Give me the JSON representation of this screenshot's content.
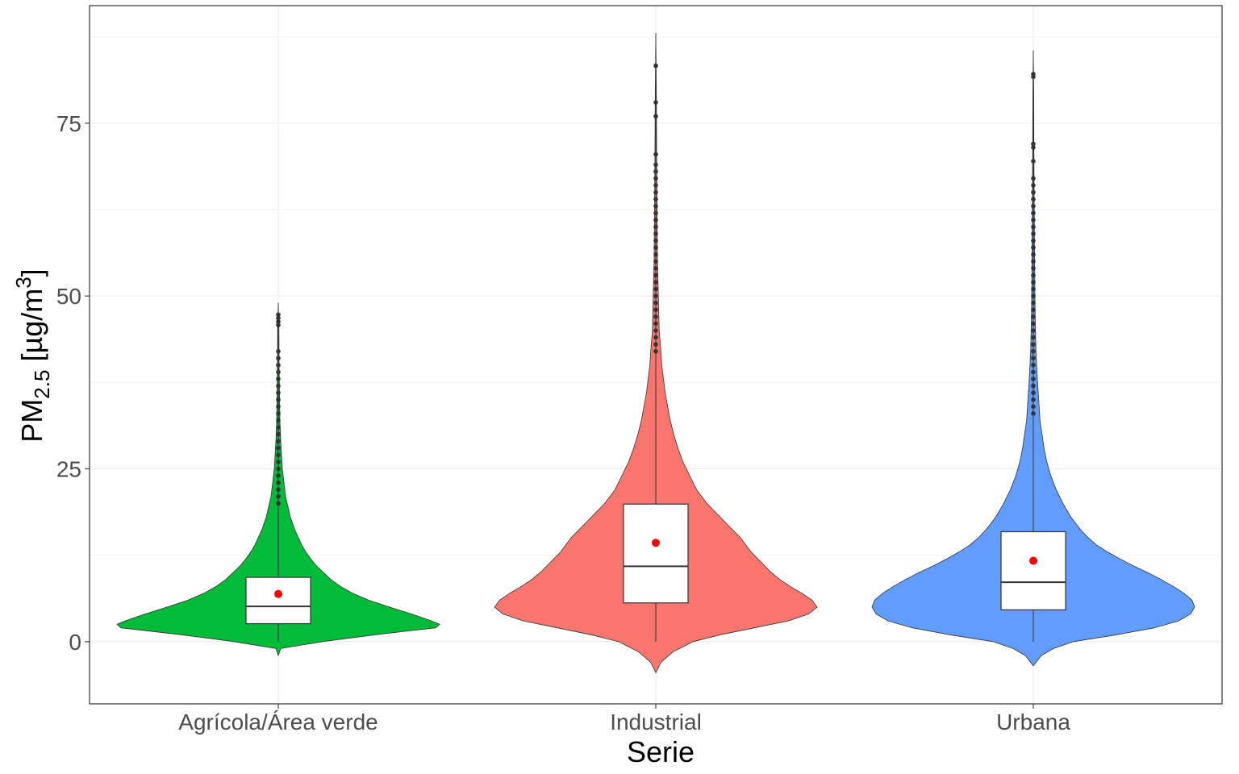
{
  "chart_data": {
    "type": "violin",
    "xlabel": "Serie",
    "ylabel": {
      "prefix": "PM",
      "subscript": "2.5",
      "unit_open": " [µg/m",
      "superscript": "3",
      "unit_close": "]"
    },
    "ylim": [
      -9,
      92
    ],
    "y_ticks": [
      0,
      25,
      50,
      75
    ],
    "y_tick_labels": [
      "0",
      "25",
      "50",
      "75"
    ],
    "grid": true,
    "legend": "none",
    "categories": [
      "Agrícola/Área verde",
      "Industrial",
      "Urbana"
    ],
    "series": [
      {
        "color": "#00BA38",
        "box": {
          "lower_whisker": 0,
          "q1": 2.6,
          "median": 5.1,
          "q3": 9.3,
          "upper_whisker": 19.6
        },
        "mean": 6.9,
        "outliers": [
          20,
          21,
          22,
          23,
          24,
          25,
          26,
          27,
          28,
          29,
          30,
          31,
          32,
          33,
          34,
          35,
          36,
          37,
          38,
          39,
          40,
          41,
          42,
          45.8,
          46.3,
          46.8,
          47.3
        ],
        "density": [
          [
            -2,
            0
          ],
          [
            -1,
            3
          ],
          [
            0,
            55
          ],
          [
            1,
            120
          ],
          [
            2,
            195
          ],
          [
            2.5,
            200
          ],
          [
            3,
            190
          ],
          [
            4,
            165
          ],
          [
            5,
            138
          ],
          [
            6,
            112
          ],
          [
            7,
            92
          ],
          [
            8,
            77
          ],
          [
            9,
            65
          ],
          [
            10,
            56
          ],
          [
            11,
            47
          ],
          [
            12,
            40
          ],
          [
            13,
            34
          ],
          [
            14,
            29
          ],
          [
            15,
            25
          ],
          [
            16,
            21
          ],
          [
            17,
            18
          ],
          [
            18,
            15
          ],
          [
            19,
            13
          ],
          [
            20,
            11
          ],
          [
            21,
            9
          ],
          [
            22,
            8
          ],
          [
            23,
            7
          ],
          [
            24,
            6
          ],
          [
            25,
            5
          ],
          [
            27,
            4
          ],
          [
            29,
            3
          ],
          [
            32,
            2
          ],
          [
            36,
            1.5
          ],
          [
            40,
            1
          ],
          [
            45,
            0.8
          ],
          [
            49,
            0
          ]
        ]
      },
      {
        "color": "#F8766D",
        "box": {
          "lower_whisker": 0,
          "q1": 5.6,
          "median": 10.9,
          "q3": 19.9,
          "upper_whisker": 41.5
        },
        "mean": 14.3,
        "outliers": [
          42,
          43,
          44,
          45,
          46,
          47,
          48,
          49,
          50,
          51,
          52,
          53,
          54,
          55,
          56,
          57,
          58,
          59,
          60,
          61,
          62,
          63,
          64,
          65,
          66,
          67,
          68,
          69,
          70.5,
          76,
          78,
          83.3
        ],
        "density": [
          [
            -4.5,
            0
          ],
          [
            -3,
            3
          ],
          [
            -1.5,
            10
          ],
          [
            0,
            22
          ],
          [
            1,
            38
          ],
          [
            2,
            58
          ],
          [
            3,
            78
          ],
          [
            4,
            90
          ],
          [
            5,
            95
          ],
          [
            6,
            92
          ],
          [
            7,
            86
          ],
          [
            8,
            79
          ],
          [
            9,
            73
          ],
          [
            10,
            68
          ],
          [
            11,
            64
          ],
          [
            12,
            60
          ],
          [
            13,
            56
          ],
          [
            14,
            53
          ],
          [
            15,
            50
          ],
          [
            16,
            46
          ],
          [
            17,
            42
          ],
          [
            18,
            38
          ],
          [
            19,
            34
          ],
          [
            20,
            30
          ],
          [
            22,
            24
          ],
          [
            24,
            20
          ],
          [
            26,
            16
          ],
          [
            28,
            13
          ],
          [
            30,
            10.5
          ],
          [
            32,
            8.5
          ],
          [
            34,
            7
          ],
          [
            36,
            5.5
          ],
          [
            38,
            4.5
          ],
          [
            40,
            3.5
          ],
          [
            42,
            3
          ],
          [
            45,
            2
          ],
          [
            50,
            1.5
          ],
          [
            55,
            1
          ],
          [
            60,
            0.8
          ],
          [
            70,
            0.5
          ],
          [
            80,
            0.3
          ],
          [
            88,
            0
          ]
        ]
      },
      {
        "color": "#619CFF",
        "box": {
          "lower_whisker": 0,
          "q1": 4.6,
          "median": 8.6,
          "q3": 15.9,
          "upper_whisker": 32.8
        },
        "mean": 11.7,
        "outliers": [
          33,
          34,
          35,
          36,
          37,
          38,
          39,
          40,
          41,
          42,
          43,
          44,
          45,
          46,
          47,
          48,
          49,
          50,
          51,
          52,
          53,
          54,
          55,
          56,
          57,
          58,
          59,
          60,
          61,
          62,
          63,
          64,
          65,
          66,
          67,
          69.5,
          71.5,
          72,
          81.7,
          82.1
        ],
        "density": [
          [
            -3.5,
            0
          ],
          [
            -2,
            6
          ],
          [
            -1,
            15
          ],
          [
            0,
            30
          ],
          [
            1,
            62
          ],
          [
            2,
            90
          ],
          [
            3,
            108
          ],
          [
            4,
            117
          ],
          [
            5,
            120
          ],
          [
            6,
            118
          ],
          [
            7,
            112
          ],
          [
            8,
            104
          ],
          [
            9,
            95
          ],
          [
            10,
            85
          ],
          [
            11,
            74
          ],
          [
            12,
            64
          ],
          [
            13,
            55
          ],
          [
            14,
            47
          ],
          [
            15,
            41
          ],
          [
            16,
            36
          ],
          [
            17,
            32
          ],
          [
            18,
            28
          ],
          [
            20,
            22
          ],
          [
            22,
            17
          ],
          [
            24,
            13
          ],
          [
            26,
            10
          ],
          [
            28,
            8
          ],
          [
            30,
            6.5
          ],
          [
            32,
            5
          ],
          [
            35,
            4
          ],
          [
            38,
            3
          ],
          [
            42,
            2
          ],
          [
            46,
            1.5
          ],
          [
            50,
            1.2
          ],
          [
            55,
            1
          ],
          [
            60,
            0.8
          ],
          [
            70,
            0.5
          ],
          [
            80,
            0.3
          ],
          [
            85.5,
            0
          ]
        ]
      }
    ]
  }
}
